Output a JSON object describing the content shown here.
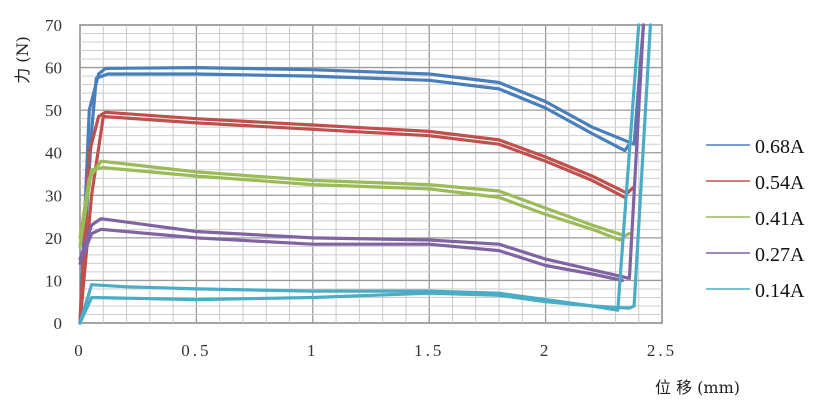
{
  "chart_data": {
    "type": "line",
    "title": "",
    "xlabel": "位 移 (mm)",
    "ylabel": "力 (N)",
    "xlim": [
      0,
      2.5
    ],
    "ylim": [
      0,
      70
    ],
    "xticks": [
      0,
      0.5,
      1,
      1.5,
      2,
      2.5
    ],
    "xtick_labels": [
      "0",
      "0.5",
      "1",
      "1.5",
      "2",
      "2.5"
    ],
    "yticks": [
      0,
      10,
      20,
      30,
      40,
      50,
      60,
      70
    ],
    "ytick_labels": [
      "0",
      "10",
      "20",
      "30",
      "40",
      "50",
      "60",
      "70"
    ],
    "grid": true,
    "legend_placement": "right",
    "series": [
      {
        "name": "0.68A",
        "color": "#4a7ebb",
        "curves": [
          {
            "x": [
              0,
              0.04,
              0.08,
              0.11,
              0.5,
              1,
              1.5,
              1.8,
              2,
              2.2,
              2.38,
              2.42
            ],
            "y": [
              0,
              50,
              58.5,
              59.8,
              60,
              59.5,
              58.5,
              56.5,
              52,
              46,
              42,
              70
            ]
          },
          {
            "x": [
              0,
              0.05,
              0.07,
              0.12,
              0.5,
              1,
              1.5,
              1.8,
              2,
              2.2,
              2.34,
              2.36
            ],
            "y": [
              0,
              45,
              57.5,
              58.5,
              58.5,
              58,
              57,
              55,
              50.5,
              44.5,
              40.5,
              42
            ]
          }
        ]
      },
      {
        "name": "0.54A",
        "color": "#c0504d",
        "curves": [
          {
            "x": [
              0,
              0.04,
              0.08,
              0.11,
              0.5,
              1,
              1.5,
              1.8,
              2,
              2.2,
              2.35,
              2.38
            ],
            "y": [
              0,
              40,
              48.5,
              49.5,
              48,
              46.5,
              45,
              43,
              39,
              34.5,
              30.5,
              32
            ]
          },
          {
            "x": [
              0,
              0.05,
              0.1,
              0.5,
              1,
              1.5,
              1.8,
              2,
              2.2,
              2.34
            ],
            "y": [
              0,
              30,
              48.5,
              47,
              45.5,
              44,
              42,
              38,
              33.5,
              29.5
            ]
          }
        ]
      },
      {
        "name": "0.41A",
        "color": "#9bbb59",
        "curves": [
          {
            "x": [
              0,
              0.04,
              0.09,
              0.5,
              1,
              1.5,
              1.8,
              2,
              2.2,
              2.34,
              2.36
            ],
            "y": [
              20,
              34,
              38,
              35.5,
              33.5,
              32.5,
              31,
              27,
              23,
              20.5,
              21
            ]
          },
          {
            "x": [
              0,
              0.05,
              0.1,
              0.5,
              1,
              1.5,
              1.8,
              2,
              2.2,
              2.32
            ],
            "y": [
              18,
              36,
              36.5,
              34.5,
              32.5,
              31.5,
              29.5,
              25.5,
              22,
              19.5
            ]
          }
        ]
      },
      {
        "name": "0.27A",
        "color": "#8064a2",
        "curves": [
          {
            "x": [
              0,
              0.05,
              0.09,
              0.5,
              1,
              1.5,
              1.8,
              2,
              2.2,
              2.36,
              2.42
            ],
            "y": [
              15,
              23,
              24.5,
              21.5,
              20,
              19.5,
              18.5,
              15,
              12.5,
              10.5,
              70
            ]
          },
          {
            "x": [
              0,
              0.05,
              0.09,
              0.5,
              1,
              1.5,
              1.8,
              2,
              2.2,
              2.33
            ],
            "y": [
              14,
              21,
              22,
              20,
              18.5,
              18.5,
              17,
              13.5,
              11.5,
              10
            ]
          }
        ]
      },
      {
        "name": "0.14A",
        "color": "#4bacc6",
        "curves": [
          {
            "x": [
              0,
              0.05,
              0.2,
              0.5,
              1,
              1.5,
              1.8,
              2,
              2.2,
              2.36,
              2.38,
              2.45
            ],
            "y": [
              0,
              9,
              8.5,
              8,
              7.5,
              7.5,
              7,
              5.5,
              4,
              3.5,
              4,
              70
            ]
          },
          {
            "x": [
              0,
              0.05,
              0.5,
              1,
              1.5,
              1.8,
              2,
              2.2,
              2.31,
              2.4
            ],
            "y": [
              0,
              6,
              5.5,
              6,
              7,
              6.5,
              5,
              4,
              3,
              70
            ]
          }
        ]
      }
    ]
  }
}
